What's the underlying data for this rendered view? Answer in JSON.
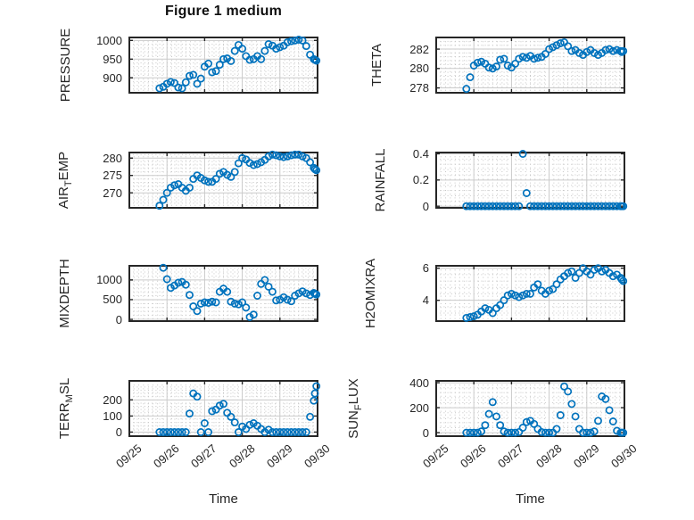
{
  "figure": {
    "background": "#ffffff"
  },
  "colors": {
    "marker": "#0072BD",
    "axis": "#262626",
    "grid_major": "#cacaca",
    "grid_minor": "#c6c6c6",
    "text": "#262626",
    "title": "#0f0f0f"
  },
  "chart_data": {
    "type": "scatter",
    "marker": "open-circle",
    "grid": "major-solid + minor-dotted",
    "legend": "none",
    "x_axis": {
      "label": "Time",
      "ticks": [
        "09/25",
        "09/26",
        "09/27",
        "09/28",
        "09/29",
        "09/30"
      ],
      "tick_positions": [
        0,
        1,
        2,
        3,
        4,
        5
      ],
      "range_days": [
        0,
        5
      ]
    },
    "x_days": [
      0.8,
      0.9,
      1.0,
      1.1,
      1.2,
      1.3,
      1.4,
      1.5,
      1.6,
      1.7,
      1.8,
      1.9,
      2.0,
      2.1,
      2.2,
      2.3,
      2.4,
      2.5,
      2.6,
      2.7,
      2.8,
      2.9,
      3.0,
      3.1,
      3.2,
      3.3,
      3.4,
      3.5,
      3.6,
      3.7,
      3.8,
      3.9,
      4.0,
      4.1,
      4.2,
      4.3,
      4.4,
      4.5,
      4.6,
      4.7,
      4.8,
      4.9,
      4.93,
      4.97
    ],
    "subplots": [
      {
        "name": "PRESSURE",
        "title": "Figure 1 medium",
        "ylabel": {
          "pre": "PRESSURE",
          "sub": "",
          "post": ""
        },
        "yticks": [
          900,
          950,
          1000
        ],
        "ylim": [
          860,
          1008
        ],
        "values": [
          872,
          876,
          884,
          889,
          886,
          874,
          872,
          888,
          905,
          908,
          884,
          898,
          930,
          938,
          915,
          918,
          935,
          950,
          952,
          945,
          972,
          988,
          978,
          958,
          948,
          950,
          958,
          950,
          972,
          990,
          986,
          978,
          982,
          986,
          995,
          998,
          1000,
          1002,
          1000,
          985,
          962,
          950,
          948,
          946
        ]
      },
      {
        "name": "THETA",
        "title": "",
        "ylabel": {
          "pre": "THETA",
          "sub": "",
          "post": ""
        },
        "yticks": [
          278,
          280,
          282
        ],
        "ylim": [
          277.5,
          283.2
        ],
        "values": [
          277.9,
          279.1,
          280.3,
          280.6,
          280.7,
          280.5,
          280.1,
          280.0,
          280.2,
          280.9,
          281.0,
          280.3,
          280.1,
          280.5,
          281.0,
          281.2,
          281.1,
          281.3,
          281.0,
          281.1,
          281.2,
          281.5,
          282.0,
          282.2,
          282.4,
          282.6,
          282.7,
          282.3,
          281.8,
          281.9,
          281.6,
          281.4,
          281.7,
          281.9,
          281.6,
          281.4,
          281.6,
          281.9,
          282.0,
          281.8,
          281.9,
          281.8,
          281.7,
          281.8
        ]
      },
      {
        "name": "AIR_TEMP",
        "title": "",
        "ylabel": {
          "pre": "AIR",
          "sub": "T",
          "post": "EMP"
        },
        "yticks": [
          270,
          275,
          280
        ],
        "ylim": [
          265.7,
          281.6
        ],
        "values": [
          266.3,
          268.0,
          270.0,
          271.5,
          272.2,
          272.5,
          271.5,
          270.6,
          271.5,
          274.0,
          275.0,
          274.3,
          273.6,
          273.2,
          273.2,
          274.0,
          275.5,
          276.0,
          275.2,
          274.6,
          276.0,
          278.5,
          280.0,
          279.6,
          278.6,
          278.0,
          278.3,
          278.8,
          279.5,
          280.5,
          281.0,
          280.8,
          280.5,
          280.3,
          280.5,
          280.8,
          281.0,
          281.0,
          280.5,
          280.0,
          278.8,
          277.2,
          276.8,
          276.5
        ]
      },
      {
        "name": "RAINFALL",
        "title": "",
        "ylabel": {
          "pre": "RAINFALL",
          "sub": "",
          "post": ""
        },
        "yticks": [
          0,
          0.2,
          0.4
        ],
        "ylim": [
          -0.012,
          0.41
        ],
        "values": [
          0,
          0,
          0,
          0,
          0,
          0,
          0,
          0,
          0,
          0,
          0,
          0,
          0,
          0,
          0,
          0.4,
          0.1,
          0,
          0,
          0,
          0,
          0,
          0,
          0,
          0,
          0,
          0,
          0,
          0,
          0,
          0,
          0,
          0,
          0,
          0,
          0,
          0,
          0,
          0,
          0,
          0,
          0,
          0,
          0
        ]
      },
      {
        "name": "MIXDEPTH",
        "title": "",
        "ylabel": {
          "pre": "MIXDEPTH",
          "sub": "",
          "post": ""
        },
        "yticks": [
          0,
          500,
          1000
        ],
        "ylim": [
          -45,
          1360
        ],
        "values": [
          null,
          1310,
          1020,
          800,
          860,
          930,
          950,
          880,
          620,
          330,
          210,
          400,
          430,
          420,
          450,
          430,
          700,
          780,
          700,
          450,
          400,
          380,
          430,
          300,
          60,
          120,
          600,
          900,
          1000,
          830,
          700,
          480,
          500,
          560,
          500,
          460,
          600,
          660,
          710,
          660,
          620,
          670,
          650,
          630
        ]
      },
      {
        "name": "H2OMIXRA",
        "title": "",
        "ylabel": {
          "pre": "H2OMIXRA",
          "sub": "",
          "post": ""
        },
        "yticks": [
          4,
          6
        ],
        "ylim": [
          2.7,
          6.15
        ],
        "values": [
          2.9,
          2.95,
          3.0,
          3.1,
          3.3,
          3.5,
          3.4,
          3.2,
          3.5,
          3.7,
          4.0,
          4.3,
          4.4,
          4.3,
          4.2,
          4.3,
          4.4,
          4.4,
          4.8,
          5.0,
          4.6,
          4.4,
          4.6,
          4.7,
          5.0,
          5.3,
          5.5,
          5.7,
          5.8,
          5.4,
          5.7,
          6.0,
          5.8,
          5.6,
          5.9,
          6.0,
          5.8,
          5.9,
          5.7,
          5.5,
          5.6,
          5.4,
          5.3,
          5.2
        ]
      },
      {
        "name": "TERR_MSL",
        "title": "",
        "ylabel": {
          "pre": "TERR",
          "sub": "M",
          "post": "SL"
        },
        "yticks": [
          0,
          100,
          200
        ],
        "ylim": [
          -25,
          318
        ],
        "values": [
          0,
          0,
          0,
          0,
          0,
          0,
          0,
          0,
          115,
          240,
          220,
          0,
          55,
          0,
          130,
          140,
          165,
          175,
          120,
          95,
          60,
          0,
          35,
          20,
          45,
          55,
          40,
          20,
          0,
          15,
          0,
          0,
          0,
          0,
          0,
          0,
          0,
          0,
          0,
          0,
          95,
          195,
          240,
          285
        ]
      },
      {
        "name": "SUN_FLUX",
        "title": "",
        "ylabel": {
          "pre": "SUN",
          "sub": "F",
          "post": "LUX"
        },
        "yticks": [
          0,
          200,
          400
        ],
        "ylim": [
          -28,
          415
        ],
        "values": [
          0,
          0,
          0,
          0,
          10,
          60,
          150,
          245,
          130,
          60,
          10,
          0,
          0,
          0,
          5,
          40,
          85,
          95,
          70,
          30,
          5,
          0,
          0,
          0,
          30,
          140,
          370,
          330,
          230,
          130,
          30,
          0,
          0,
          0,
          10,
          95,
          290,
          270,
          180,
          90,
          15,
          0,
          0,
          0
        ]
      }
    ]
  }
}
